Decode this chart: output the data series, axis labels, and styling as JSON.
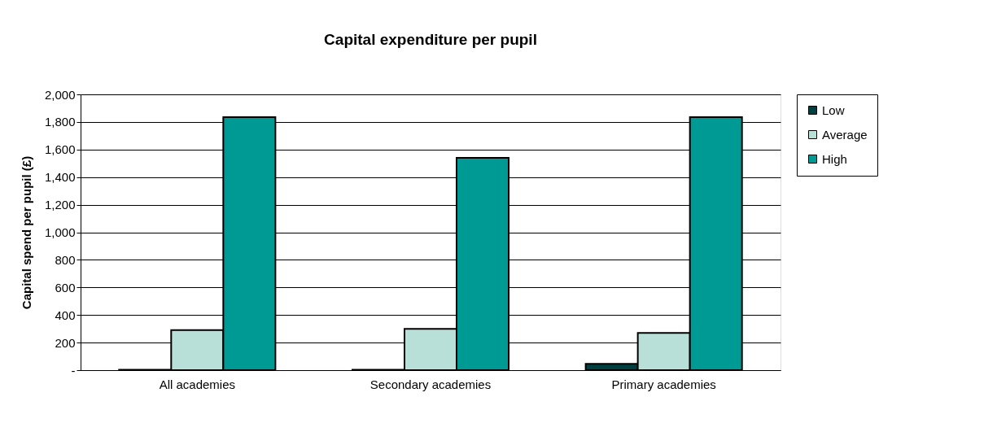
{
  "chart_data": {
    "type": "bar",
    "title": "Capital expenditure per pupil",
    "ylabel": "Capital spend per pupil (£)",
    "categories": [
      "All academies",
      "Secondary academies",
      "Primary academies"
    ],
    "series": [
      {
        "name": "Low",
        "color": "#003f3f",
        "values": [
          3,
          3,
          45
        ]
      },
      {
        "name": "Average",
        "color": "#b8e0d8",
        "values": [
          290,
          300,
          270
        ]
      },
      {
        "name": "High",
        "color": "#009a94",
        "values": [
          1835,
          1540,
          1835
        ]
      }
    ],
    "ylim": [
      0,
      2000
    ],
    "yticks": [
      {
        "value": 0,
        "label": "-"
      },
      {
        "value": 200,
        "label": "200"
      },
      {
        "value": 400,
        "label": "400"
      },
      {
        "value": 600,
        "label": "600"
      },
      {
        "value": 800,
        "label": "800"
      },
      {
        "value": 1000,
        "label": "1,000"
      },
      {
        "value": 1200,
        "label": "1,200"
      },
      {
        "value": 1400,
        "label": "1,400"
      },
      {
        "value": 1600,
        "label": "1,600"
      },
      {
        "value": 1800,
        "label": "1,800"
      },
      {
        "value": 2000,
        "label": "2,000"
      }
    ],
    "grid": "y",
    "legend": "right"
  }
}
